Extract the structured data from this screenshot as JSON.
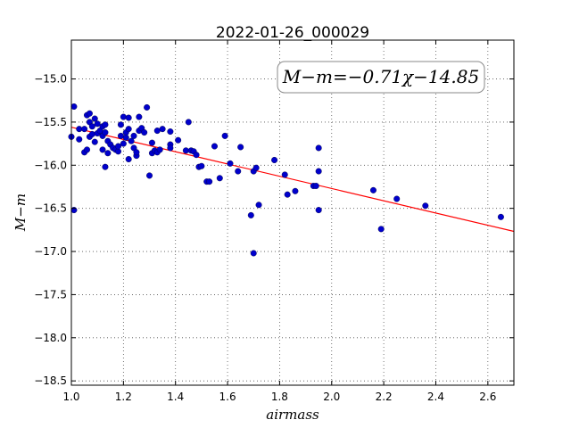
{
  "chart_data": {
    "type": "scatter",
    "title": "2022-01-26_000029",
    "xlabel": "airmass",
    "ylabel": "M−m",
    "annotation": "M−m=−0.71χ−14.85",
    "xlim": [
      1.0,
      2.7
    ],
    "ylim": [
      -18.55,
      -14.55
    ],
    "y_inverted": true,
    "grid": true,
    "xticks": [
      "1.0",
      "1.2",
      "1.4",
      "1.6",
      "1.8",
      "2.0",
      "2.2",
      "2.4",
      "2.6"
    ],
    "yticks": [
      "−15.0",
      "−15.5",
      "−16.0",
      "−16.5",
      "−17.0",
      "−17.5",
      "−18.0",
      "−18.5"
    ],
    "fit": {
      "slope": -0.71,
      "intercept": -14.85,
      "color": "#ff0000"
    },
    "point_color": "#0000cc",
    "points": [
      [
        1.0,
        -15.67
      ],
      [
        1.01,
        -15.32
      ],
      [
        1.01,
        -16.52
      ],
      [
        1.03,
        -15.58
      ],
      [
        1.03,
        -15.7
      ],
      [
        1.05,
        -15.58
      ],
      [
        1.05,
        -15.85
      ],
      [
        1.06,
        -15.42
      ],
      [
        1.06,
        -15.82
      ],
      [
        1.07,
        -15.4
      ],
      [
        1.07,
        -15.5
      ],
      [
        1.07,
        -15.67
      ],
      [
        1.08,
        -15.55
      ],
      [
        1.08,
        -15.64
      ],
      [
        1.09,
        -15.46
      ],
      [
        1.09,
        -15.73
      ],
      [
        1.1,
        -15.63
      ],
      [
        1.1,
        -15.52
      ],
      [
        1.11,
        -15.6
      ],
      [
        1.12,
        -15.55
      ],
      [
        1.12,
        -15.66
      ],
      [
        1.12,
        -15.82
      ],
      [
        1.13,
        -16.02
      ],
      [
        1.13,
        -15.53
      ],
      [
        1.13,
        -15.62
      ],
      [
        1.14,
        -15.72
      ],
      [
        1.14,
        -15.86
      ],
      [
        1.15,
        -15.76
      ],
      [
        1.16,
        -15.8
      ],
      [
        1.17,
        -15.82
      ],
      [
        1.18,
        -15.84
      ],
      [
        1.18,
        -15.78
      ],
      [
        1.19,
        -15.53
      ],
      [
        1.19,
        -15.66
      ],
      [
        1.2,
        -15.44
      ],
      [
        1.2,
        -15.75
      ],
      [
        1.21,
        -15.62
      ],
      [
        1.21,
        -15.68
      ],
      [
        1.22,
        -15.58
      ],
      [
        1.22,
        -15.45
      ],
      [
        1.22,
        -15.93
      ],
      [
        1.23,
        -15.72
      ],
      [
        1.24,
        -15.8
      ],
      [
        1.24,
        -15.66
      ],
      [
        1.25,
        -15.89
      ],
      [
        1.25,
        -15.85
      ],
      [
        1.26,
        -15.6
      ],
      [
        1.26,
        -15.44
      ],
      [
        1.27,
        -15.57
      ],
      [
        1.28,
        -15.62
      ],
      [
        1.29,
        -15.33
      ],
      [
        1.3,
        -16.12
      ],
      [
        1.31,
        -15.74
      ],
      [
        1.31,
        -15.86
      ],
      [
        1.32,
        -15.83
      ],
      [
        1.33,
        -15.85
      ],
      [
        1.33,
        -15.6
      ],
      [
        1.34,
        -15.82
      ],
      [
        1.35,
        -15.58
      ],
      [
        1.38,
        -15.61
      ],
      [
        1.38,
        -15.76
      ],
      [
        1.38,
        -15.8
      ],
      [
        1.41,
        -15.71
      ],
      [
        1.44,
        -15.83
      ],
      [
        1.45,
        -15.5
      ],
      [
        1.46,
        -15.83
      ],
      [
        1.47,
        -15.84
      ],
      [
        1.48,
        -15.88
      ],
      [
        1.49,
        -16.02
      ],
      [
        1.5,
        -16.01
      ],
      [
        1.52,
        -16.19
      ],
      [
        1.53,
        -16.19
      ],
      [
        1.55,
        -15.78
      ],
      [
        1.57,
        -16.15
      ],
      [
        1.59,
        -15.66
      ],
      [
        1.61,
        -15.98
      ],
      [
        1.64,
        -16.07
      ],
      [
        1.65,
        -15.79
      ],
      [
        1.69,
        -16.58
      ],
      [
        1.7,
        -16.07
      ],
      [
        1.7,
        -17.02
      ],
      [
        1.71,
        -16.03
      ],
      [
        1.72,
        -16.46
      ],
      [
        1.78,
        -15.94
      ],
      [
        1.82,
        -16.11
      ],
      [
        1.83,
        -16.34
      ],
      [
        1.86,
        -16.3
      ],
      [
        1.93,
        -16.24
      ],
      [
        1.94,
        -16.24
      ],
      [
        1.95,
        -16.07
      ],
      [
        1.95,
        -15.8
      ],
      [
        1.95,
        -16.52
      ],
      [
        2.16,
        -16.29
      ],
      [
        2.19,
        -16.74
      ],
      [
        2.25,
        -16.39
      ],
      [
        2.36,
        -16.47
      ],
      [
        2.65,
        -16.6
      ]
    ]
  }
}
